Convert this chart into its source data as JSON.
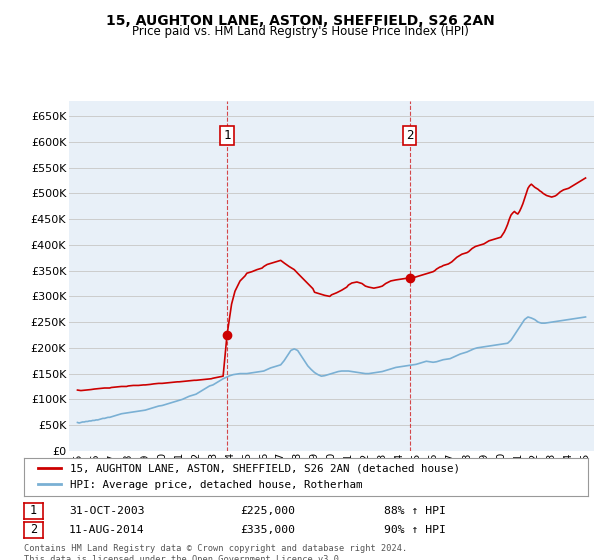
{
  "title": "15, AUGHTON LANE, ASTON, SHEFFIELD, S26 2AN",
  "subtitle": "Price paid vs. HM Land Registry's House Price Index (HPI)",
  "legend_label_red": "15, AUGHTON LANE, ASTON, SHEFFIELD, S26 2AN (detached house)",
  "legend_label_blue": "HPI: Average price, detached house, Rotherham",
  "annotation1_label": "1",
  "annotation1_date": "31-OCT-2003",
  "annotation1_price": "£225,000",
  "annotation1_hpi": "88% ↑ HPI",
  "annotation2_label": "2",
  "annotation2_date": "11-AUG-2014",
  "annotation2_price": "£335,000",
  "annotation2_hpi": "90% ↑ HPI",
  "footnote": "Contains HM Land Registry data © Crown copyright and database right 2024.\nThis data is licensed under the Open Government Licence v3.0.",
  "ylim": [
    0,
    680000
  ],
  "yticks": [
    0,
    50000,
    100000,
    150000,
    200000,
    250000,
    300000,
    350000,
    400000,
    450000,
    500000,
    550000,
    600000,
    650000
  ],
  "red_color": "#cc0000",
  "blue_color": "#7ab0d4",
  "vline_color": "#cc0000",
  "grid_color": "#cccccc",
  "plot_bg_color": "#e8f0f8",
  "background_color": "#ffffff",
  "hpi_x": [
    1995.0,
    1995.1,
    1995.2,
    1995.3,
    1995.4,
    1995.5,
    1995.6,
    1995.7,
    1995.8,
    1995.9,
    1996.0,
    1996.1,
    1996.2,
    1996.3,
    1996.4,
    1996.5,
    1996.6,
    1996.7,
    1996.8,
    1996.9,
    1997.0,
    1997.2,
    1997.4,
    1997.6,
    1997.8,
    1998.0,
    1998.2,
    1998.4,
    1998.6,
    1998.8,
    1999.0,
    1999.2,
    1999.4,
    1999.6,
    1999.8,
    2000.0,
    2000.2,
    2000.4,
    2000.6,
    2000.8,
    2001.0,
    2001.2,
    2001.4,
    2001.6,
    2001.8,
    2002.0,
    2002.2,
    2002.4,
    2002.6,
    2002.8,
    2003.0,
    2003.2,
    2003.4,
    2003.6,
    2003.8,
    2004.0,
    2004.2,
    2004.4,
    2004.6,
    2004.8,
    2005.0,
    2005.2,
    2005.4,
    2005.6,
    2005.8,
    2006.0,
    2006.2,
    2006.4,
    2006.6,
    2006.8,
    2007.0,
    2007.2,
    2007.4,
    2007.6,
    2007.8,
    2008.0,
    2008.2,
    2008.4,
    2008.6,
    2008.8,
    2009.0,
    2009.2,
    2009.4,
    2009.6,
    2009.8,
    2010.0,
    2010.2,
    2010.4,
    2010.6,
    2010.8,
    2011.0,
    2011.2,
    2011.4,
    2011.6,
    2011.8,
    2012.0,
    2012.2,
    2012.4,
    2012.6,
    2012.8,
    2013.0,
    2013.2,
    2013.4,
    2013.6,
    2013.8,
    2014.0,
    2014.2,
    2014.4,
    2014.6,
    2014.8,
    2015.0,
    2015.2,
    2015.4,
    2015.6,
    2015.8,
    2016.0,
    2016.2,
    2016.4,
    2016.6,
    2016.8,
    2017.0,
    2017.2,
    2017.4,
    2017.6,
    2017.8,
    2018.0,
    2018.2,
    2018.4,
    2018.6,
    2018.8,
    2019.0,
    2019.2,
    2019.4,
    2019.6,
    2019.8,
    2020.0,
    2020.2,
    2020.4,
    2020.6,
    2020.8,
    2021.0,
    2021.2,
    2021.4,
    2021.6,
    2021.8,
    2022.0,
    2022.2,
    2022.4,
    2022.6,
    2022.8,
    2023.0,
    2023.2,
    2023.4,
    2023.6,
    2023.8,
    2024.0,
    2024.2,
    2024.4,
    2024.6,
    2024.8,
    2025.0
  ],
  "hpi_y": [
    55000,
    54000,
    55000,
    56000,
    56000,
    57000,
    57000,
    58000,
    58000,
    59000,
    59000,
    60000,
    60000,
    61000,
    62000,
    63000,
    63000,
    64000,
    65000,
    65000,
    66000,
    68000,
    70000,
    72000,
    73000,
    74000,
    75000,
    76000,
    77000,
    78000,
    79000,
    81000,
    83000,
    85000,
    87000,
    88000,
    90000,
    92000,
    94000,
    96000,
    98000,
    100000,
    103000,
    106000,
    108000,
    110000,
    114000,
    118000,
    122000,
    126000,
    128000,
    132000,
    136000,
    140000,
    143000,
    146000,
    148000,
    149000,
    150000,
    150000,
    150000,
    151000,
    152000,
    153000,
    154000,
    155000,
    158000,
    161000,
    163000,
    165000,
    167000,
    175000,
    185000,
    195000,
    198000,
    195000,
    185000,
    175000,
    165000,
    158000,
    152000,
    148000,
    145000,
    146000,
    148000,
    150000,
    152000,
    154000,
    155000,
    155000,
    155000,
    154000,
    153000,
    152000,
    151000,
    150000,
    150000,
    151000,
    152000,
    153000,
    154000,
    156000,
    158000,
    160000,
    162000,
    163000,
    164000,
    165000,
    166000,
    167000,
    168000,
    170000,
    172000,
    174000,
    173000,
    172000,
    173000,
    175000,
    177000,
    178000,
    179000,
    182000,
    185000,
    188000,
    190000,
    192000,
    195000,
    198000,
    200000,
    201000,
    202000,
    203000,
    204000,
    205000,
    206000,
    207000,
    208000,
    209000,
    215000,
    225000,
    235000,
    245000,
    255000,
    260000,
    258000,
    255000,
    250000,
    248000,
    248000,
    249000,
    250000,
    251000,
    252000,
    253000,
    254000,
    255000,
    256000,
    257000,
    258000,
    259000,
    260000
  ],
  "red_x": [
    1995.0,
    1995.2,
    1995.5,
    1995.8,
    1996.0,
    1996.3,
    1996.6,
    1996.9,
    1997.0,
    1997.3,
    1997.6,
    1997.9,
    1998.0,
    1998.3,
    1998.6,
    1998.9,
    1999.0,
    1999.3,
    1999.5,
    1999.8,
    2000.0,
    2000.3,
    2000.6,
    2000.9,
    2001.0,
    2001.3,
    2001.6,
    2001.9,
    2002.0,
    2002.3,
    2002.6,
    2002.9,
    2003.0,
    2003.3,
    2003.6,
    2003.83,
    2004.1,
    2004.3,
    2004.6,
    2004.9,
    2005.0,
    2005.3,
    2005.6,
    2005.9,
    2006.0,
    2006.2,
    2006.5,
    2006.8,
    2007.0,
    2007.2,
    2007.5,
    2007.8,
    2008.0,
    2008.3,
    2008.6,
    2008.9,
    2009.0,
    2009.3,
    2009.6,
    2009.9,
    2010.0,
    2010.3,
    2010.6,
    2010.9,
    2011.0,
    2011.2,
    2011.5,
    2011.8,
    2012.0,
    2012.2,
    2012.5,
    2012.8,
    2013.0,
    2013.2,
    2013.5,
    2013.8,
    2014.0,
    2014.2,
    2014.4,
    2014.61,
    2014.8,
    2015.0,
    2015.2,
    2015.4,
    2015.6,
    2015.8,
    2016.0,
    2016.1,
    2016.2,
    2016.3,
    2016.4,
    2016.5,
    2016.6,
    2016.7,
    2016.8,
    2016.9,
    2017.0,
    2017.1,
    2017.2,
    2017.3,
    2017.4,
    2017.5,
    2017.6,
    2017.7,
    2017.8,
    2017.9,
    2018.0,
    2018.1,
    2018.2,
    2018.3,
    2018.4,
    2018.5,
    2018.6,
    2018.7,
    2018.8,
    2018.9,
    2019.0,
    2019.1,
    2019.2,
    2019.3,
    2019.4,
    2019.5,
    2019.6,
    2019.7,
    2019.8,
    2019.9,
    2020.0,
    2020.1,
    2020.2,
    2020.3,
    2020.4,
    2020.5,
    2020.6,
    2020.7,
    2020.8,
    2020.9,
    2021.0,
    2021.1,
    2021.2,
    2021.3,
    2021.4,
    2021.5,
    2021.6,
    2021.7,
    2021.8,
    2021.9,
    2022.0,
    2022.1,
    2022.2,
    2022.3,
    2022.4,
    2022.5,
    2022.6,
    2022.7,
    2022.8,
    2022.9,
    2023.0,
    2023.1,
    2023.2,
    2023.3,
    2023.4,
    2023.5,
    2023.6,
    2023.7,
    2023.8,
    2023.9,
    2024.0,
    2024.1,
    2024.2,
    2024.3,
    2024.4,
    2024.5,
    2024.6,
    2024.7,
    2024.8,
    2024.9,
    2025.0
  ],
  "red_y": [
    118000,
    117000,
    118000,
    119000,
    120000,
    121000,
    122000,
    122000,
    123000,
    124000,
    125000,
    125000,
    126000,
    127000,
    127000,
    128000,
    128000,
    129000,
    130000,
    131000,
    131000,
    132000,
    133000,
    134000,
    134000,
    135000,
    136000,
    137000,
    137000,
    138000,
    139000,
    140000,
    141000,
    143000,
    145000,
    225000,
    285000,
    310000,
    330000,
    340000,
    345000,
    348000,
    352000,
    355000,
    358000,
    362000,
    365000,
    368000,
    370000,
    365000,
    358000,
    352000,
    345000,
    335000,
    325000,
    315000,
    308000,
    305000,
    302000,
    300000,
    303000,
    307000,
    312000,
    318000,
    322000,
    326000,
    328000,
    325000,
    320000,
    318000,
    316000,
    318000,
    320000,
    325000,
    330000,
    332000,
    333000,
    334000,
    335000,
    335000,
    336000,
    338000,
    340000,
    342000,
    344000,
    346000,
    348000,
    350000,
    353000,
    355000,
    357000,
    358000,
    360000,
    361000,
    362000,
    363000,
    365000,
    367000,
    370000,
    373000,
    376000,
    378000,
    380000,
    382000,
    383000,
    384000,
    385000,
    387000,
    390000,
    393000,
    395000,
    397000,
    398000,
    399000,
    400000,
    401000,
    402000,
    404000,
    406000,
    408000,
    409000,
    410000,
    411000,
    412000,
    413000,
    414000,
    415000,
    420000,
    425000,
    432000,
    440000,
    450000,
    458000,
    462000,
    465000,
    462000,
    460000,
    465000,
    472000,
    480000,
    490000,
    500000,
    510000,
    515000,
    518000,
    515000,
    512000,
    510000,
    508000,
    505000,
    503000,
    500000,
    498000,
    496000,
    495000,
    494000,
    493000,
    494000,
    495000,
    497000,
    500000,
    503000,
    505000,
    507000,
    508000,
    509000,
    510000,
    512000,
    514000,
    516000,
    518000,
    520000,
    522000,
    524000,
    526000,
    528000,
    530000
  ],
  "sale1_x": 2003.83,
  "sale1_y": 225000,
  "sale2_x": 2014.61,
  "sale2_y": 335000,
  "xlim_left": 1994.5,
  "xlim_right": 2025.5
}
